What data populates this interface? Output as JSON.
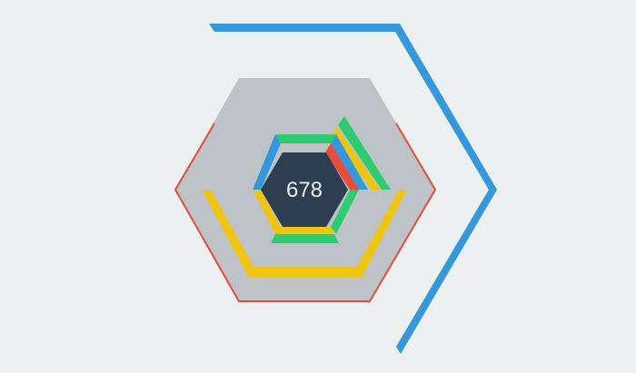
{
  "game": {
    "score": "678"
  },
  "theme": {
    "background": "#ecf0f1",
    "board_fill": "#bdc3c7",
    "board_outline": "#e74c3c",
    "center_fill": "#2c3e50",
    "score_color": "#ecf0f1"
  },
  "blocks": {
    "blue": "#3498db",
    "green": "#2ecc71",
    "yellow": "#f1c40f",
    "red": "#e74c3c"
  }
}
